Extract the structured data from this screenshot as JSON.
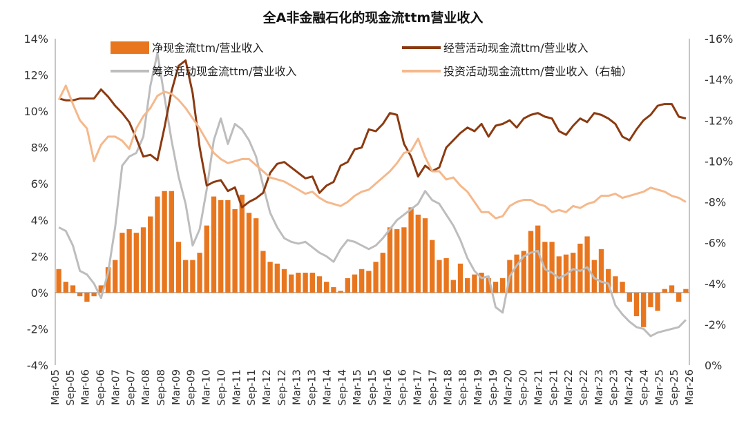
{
  "chart_data": {
    "type": "bar+line",
    "title": "全A非金融石化的现金流ttm营业收入",
    "left_axis": {
      "min": -4,
      "max": 14,
      "step": 2,
      "ticks": [
        "-4%",
        "-2%",
        "0%",
        "2%",
        "4%",
        "6%",
        "8%",
        "10%",
        "12%",
        "14%"
      ]
    },
    "right_axis": {
      "min": 0,
      "max": -16,
      "step": -2,
      "reversed": true,
      "ticks": [
        "0%",
        "-2%",
        "-4%",
        "-6%",
        "-8%",
        "-10%",
        "-12%",
        "-14%",
        "-16%"
      ]
    },
    "x_labels": [
      "Mar-05",
      "Sep-05",
      "Mar-06",
      "Sep-06",
      "Mar-07",
      "Sep-07",
      "Mar-08",
      "Sep-08",
      "Mar-09",
      "Sep-09",
      "Mar-10",
      "Sep-10",
      "Mar-11",
      "Sep-11",
      "Mar-12",
      "Sep-12",
      "Mar-13",
      "Sep-13",
      "Mar-14",
      "Sep-14",
      "Mar-15",
      "Sep-15",
      "Mar-16",
      "Sep-16",
      "Mar-17",
      "Sep-17",
      "Mar-18",
      "Sep-18",
      "Mar-19",
      "Sep-19",
      "Mar-20",
      "Sep-20",
      "Mar-21",
      "Sep-21",
      "Mar-22",
      "Sep-22",
      "Mar-23",
      "Sep-23",
      "Mar-24",
      "Sep-24",
      "Mar-25",
      "Sep-25",
      "Mar-26"
    ],
    "legend": [
      "净现金流ttm/营业收入",
      "经营活动现金流ttm/营业收入",
      "筹资活动现金流ttm/营业收入",
      "投资活动现金流ttm/营业收入（右轴）"
    ],
    "colors": {
      "net": "#e8761f",
      "operating": "#8b3a10",
      "financing": "#bdbdbd",
      "investing": "#f5b88b"
    },
    "series": [
      {
        "name": "净现金流ttm/营业收入",
        "type": "bar",
        "axis": "left",
        "values": [
          1.3,
          0.6,
          0.4,
          -0.2,
          -0.5,
          -0.2,
          0.4,
          1.4,
          1.8,
          3.3,
          3.5,
          3.3,
          3.6,
          4.2,
          5.3,
          5.6,
          5.6,
          2.8,
          1.8,
          1.8,
          2.2,
          3.7,
          5.3,
          5.1,
          5.1,
          4.6,
          5.4,
          4.4,
          4.1,
          2.3,
          1.7,
          1.6,
          1.3,
          1.0,
          1.1,
          1.1,
          1.1,
          0.9,
          0.6,
          0.3,
          0.1,
          0.8,
          1.0,
          1.3,
          1.2,
          1.7,
          2.2,
          3.6,
          3.5,
          3.6,
          4.7,
          4.3,
          4.1,
          2.9,
          1.8,
          1.9,
          0.7,
          1.6,
          0.8,
          1.0,
          1.1,
          0.8,
          0.6,
          0.8,
          1.8,
          2.1,
          2.3,
          3.4,
          3.7,
          2.8,
          2.8,
          2.0,
          2.1,
          2.2,
          2.7,
          3.1,
          1.8,
          2.4,
          1.3,
          0.9,
          0.6,
          -0.5,
          -1.3,
          -1.9,
          -0.8,
          -1.0,
          0.2,
          0.4,
          -0.5,
          0.2
        ]
      },
      {
        "name": "经营活动现金流ttm/营业收入",
        "type": "line",
        "axis": "left",
        "values": [
          10.7,
          10.6,
          10.6,
          10.7,
          10.7,
          10.7,
          11.2,
          10.8,
          10.3,
          9.9,
          9.4,
          8.5,
          7.5,
          7.6,
          7.3,
          9.1,
          11.1,
          12.5,
          12.8,
          11.0,
          8.0,
          5.9,
          6.1,
          6.2,
          5.6,
          5.8,
          4.7,
          5.0,
          5.2,
          5.5,
          6.6,
          7.1,
          7.2,
          6.9,
          6.6,
          6.3,
          6.4,
          5.5,
          5.9,
          6.1,
          7.0,
          7.2,
          7.9,
          8.0,
          9.0,
          8.9,
          9.3,
          9.9,
          9.8,
          8.2,
          7.5,
          6.4,
          7.0,
          6.7,
          6.9,
          8.0,
          8.4,
          8.8,
          9.1,
          8.9,
          9.3,
          8.6,
          9.2,
          9.3,
          9.5,
          9.1,
          9.6,
          9.8,
          9.9,
          9.7,
          9.6,
          8.9,
          8.7,
          9.2,
          9.6,
          9.4,
          9.9,
          9.8,
          9.6,
          9.3,
          8.6,
          8.4,
          9.0,
          9.5,
          9.8,
          10.3,
          10.4,
          10.4,
          9.7,
          9.6
        ]
      },
      {
        "name": "筹资活动现金流ttm/营业收入",
        "type": "line",
        "axis": "left",
        "values": [
          3.6,
          3.4,
          2.6,
          1.2,
          1.0,
          0.5,
          -0.3,
          1.1,
          3.6,
          7.0,
          7.5,
          7.7,
          8.6,
          11.4,
          13.2,
          10.8,
          8.4,
          6.4,
          4.9,
          2.6,
          3.5,
          5.7,
          8.4,
          9.6,
          8.2,
          9.3,
          9.0,
          8.4,
          7.5,
          5.9,
          4.4,
          3.6,
          3.0,
          2.8,
          2.7,
          2.8,
          2.5,
          2.2,
          2.0,
          1.7,
          2.4,
          2.9,
          2.8,
          2.6,
          2.4,
          2.6,
          3.0,
          3.5,
          4.0,
          4.3,
          4.6,
          4.9,
          5.6,
          5.1,
          4.9,
          4.3,
          3.7,
          2.9,
          1.9,
          1.2,
          0.8,
          0.9,
          -0.8,
          -1.1,
          0.9,
          1.5,
          2.0,
          2.2,
          2.3,
          1.3,
          1.1,
          0.8,
          1.0,
          1.3,
          1.2,
          1.4,
          0.8,
          0.6,
          0.5,
          -0.7,
          -1.2,
          -1.6,
          -1.9,
          -2.0,
          -2.4,
          -2.2,
          -2.1,
          -2.0,
          -1.9,
          -1.5
        ]
      },
      {
        "name": "投资活动现金流ttm/营业收入（右轴）",
        "type": "line",
        "axis": "right",
        "values": [
          -13.0,
          -13.7,
          -12.8,
          -12.0,
          -11.6,
          -10.0,
          -10.8,
          -11.2,
          -11.2,
          -11.0,
          -10.6,
          -11.6,
          -12.2,
          -12.6,
          -13.2,
          -13.4,
          -13.3,
          -13.0,
          -12.6,
          -12.1,
          -11.6,
          -11.0,
          -10.4,
          -10.1,
          -9.9,
          -10.0,
          -10.1,
          -10.1,
          -9.8,
          -9.5,
          -9.2,
          -9.1,
          -9.0,
          -8.8,
          -8.6,
          -8.4,
          -8.5,
          -8.2,
          -8.0,
          -7.9,
          -7.8,
          -8.0,
          -8.3,
          -8.5,
          -8.6,
          -8.9,
          -9.2,
          -9.5,
          -9.9,
          -10.4,
          -10.5,
          -11.1,
          -10.2,
          -9.5,
          -9.5,
          -9.1,
          -9.2,
          -8.8,
          -8.5,
          -8.0,
          -7.5,
          -7.5,
          -7.2,
          -7.3,
          -7.8,
          -8.0,
          -8.1,
          -8.1,
          -7.9,
          -7.8,
          -7.5,
          -7.6,
          -7.5,
          -7.8,
          -7.7,
          -7.9,
          -8.0,
          -8.3,
          -8.3,
          -8.4,
          -8.2,
          -8.3,
          -8.4,
          -8.5,
          -8.7,
          -8.6,
          -8.5,
          -8.3,
          -8.2,
          -8.0
        ]
      }
    ]
  }
}
